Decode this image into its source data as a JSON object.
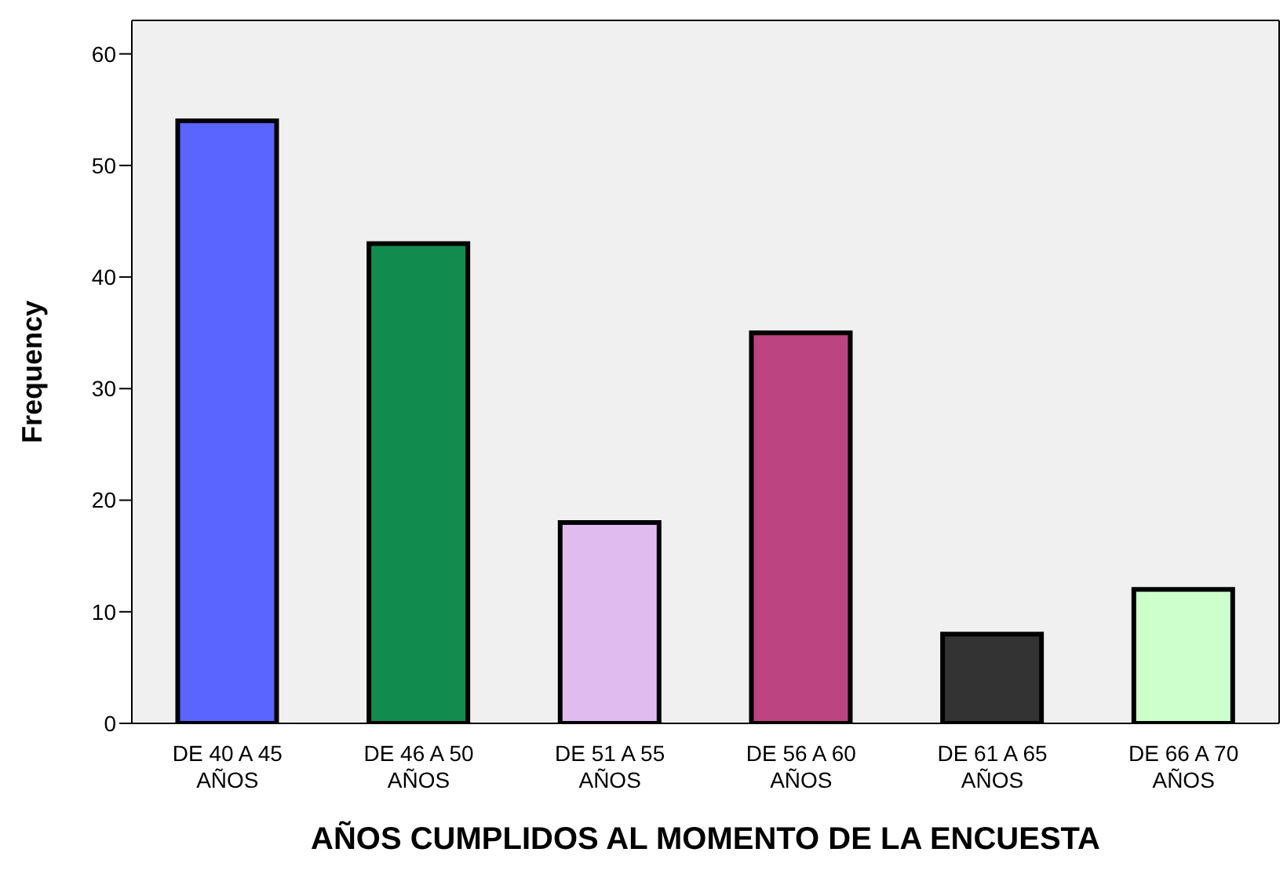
{
  "chart_data": {
    "type": "bar",
    "xlabel": "AÑOS CUMPLIDOS AL MOMENTO DE LA ENCUESTA",
    "ylabel": "Frequency",
    "categories": [
      "DE 40 A 45 AÑOS",
      "DE 46 A 50 AÑOS",
      "DE 51 A 55 AÑOS",
      "DE 56 A 60 AÑOS",
      "DE 61 A 65 AÑOS",
      "DE 66 A 70 AÑOS"
    ],
    "values": [
      54,
      43,
      18,
      35,
      8,
      12
    ],
    "colors": [
      "#5a64ff",
      "#118c4e",
      "#dfbbf0",
      "#bc4480",
      "#333333",
      "#ccffcc"
    ],
    "ylim": [
      0,
      63
    ],
    "yticks": [
      0,
      10,
      20,
      30,
      40,
      50,
      60
    ],
    "grid": false
  }
}
